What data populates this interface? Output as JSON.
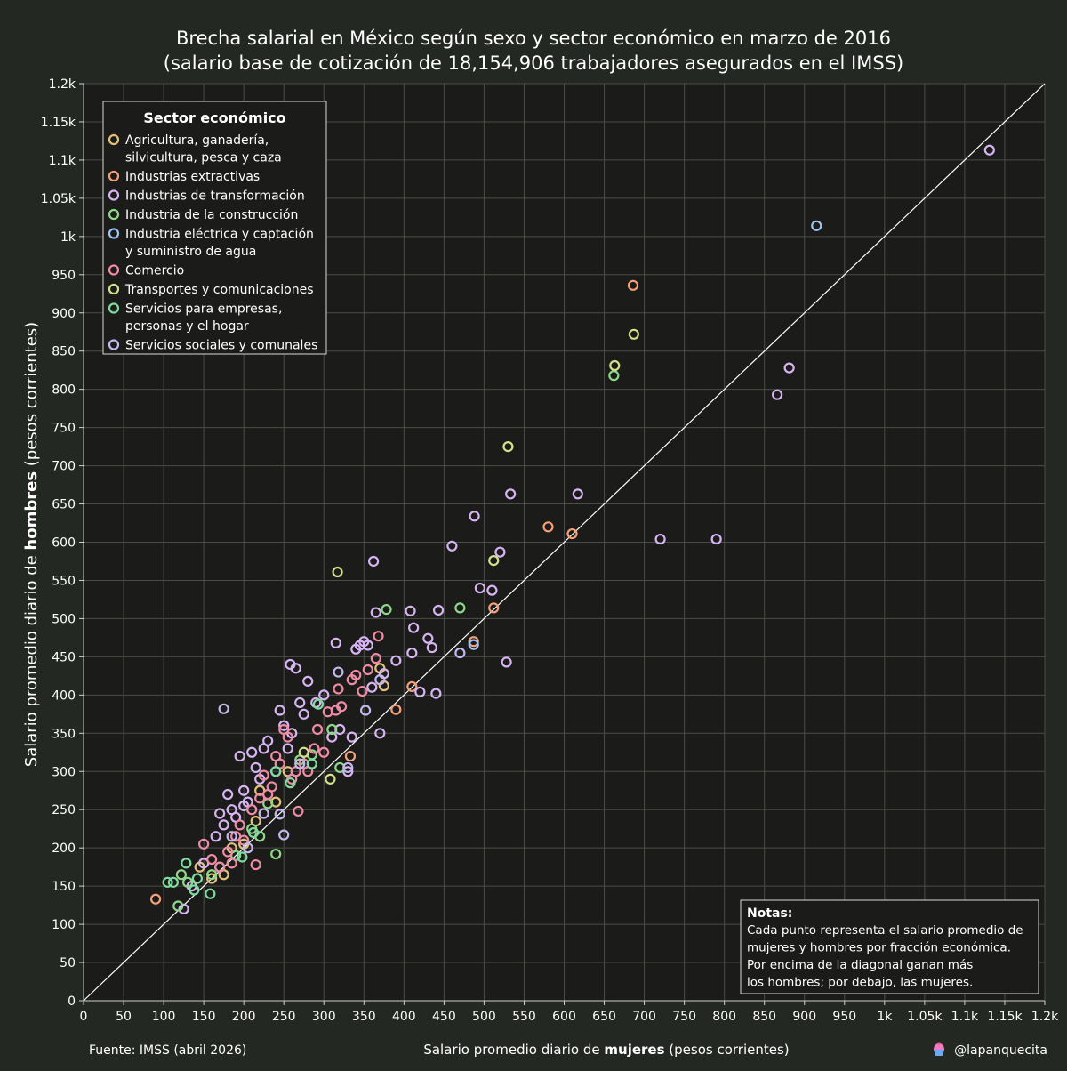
{
  "chart_data": {
    "type": "scatter",
    "title": "Brecha salarial en México según sexo y sector económico en marzo de 2016",
    "subtitle": "(salario base de cotización de 18,154,906 trabajadores asegurados en el IMSS)",
    "xlabel_prefix": "Salario promedio diario de ",
    "xlabel_bold": "mujeres",
    "xlabel_suffix": " (pesos corrientes)",
    "ylabel_prefix": "Salario promedio diario de ",
    "ylabel_bold": "hombres",
    "ylabel_suffix": " (pesos corrientes)",
    "xlim": [
      0,
      1200
    ],
    "ylim": [
      0,
      1200
    ],
    "xticks": [
      0,
      50,
      100,
      150,
      200,
      250,
      300,
      350,
      400,
      450,
      500,
      550,
      600,
      650,
      700,
      750,
      800,
      850,
      900,
      950,
      1000,
      1050,
      1100,
      1150,
      1200
    ],
    "xtick_labels": [
      "0",
      "50",
      "100",
      "150",
      "200",
      "250",
      "300",
      "350",
      "400",
      "450",
      "500",
      "550",
      "600",
      "650",
      "700",
      "750",
      "800",
      "850",
      "900",
      "950",
      "1k",
      "1.05k",
      "1.1k",
      "1.15k",
      "1.2k"
    ],
    "yticks": [
      0,
      50,
      100,
      150,
      200,
      250,
      300,
      350,
      400,
      450,
      500,
      550,
      600,
      650,
      700,
      750,
      800,
      850,
      900,
      950,
      1000,
      1050,
      1100,
      1150,
      1200
    ],
    "ytick_labels": [
      "0",
      "50",
      "100",
      "150",
      "200",
      "250",
      "300",
      "350",
      "400",
      "450",
      "500",
      "550",
      "600",
      "650",
      "700",
      "750",
      "800",
      "850",
      "900",
      "950",
      "1k",
      "1.05k",
      "1.1k",
      "1.15k",
      "1.2k"
    ],
    "grid": true,
    "reference_line": "diagonal y = x",
    "legend": {
      "title": "Sector económico",
      "placement": "top-left"
    },
    "series": [
      {
        "name": "Agricultura, ganadería, silvicultura, pesca y caza",
        "legend_lines": [
          "Agricultura, ganadería,",
          "silvicultura, pesca y caza"
        ],
        "color": "#e5c07b",
        "points": [
          [
            145,
            175
          ],
          [
            160,
            160
          ],
          [
            175,
            165
          ],
          [
            185,
            200
          ],
          [
            200,
            205
          ],
          [
            215,
            235
          ],
          [
            220,
            275
          ],
          [
            240,
            260
          ],
          [
            255,
            300
          ],
          [
            370,
            435
          ],
          [
            375,
            412
          ]
        ]
      },
      {
        "name": "Industrias extractivas",
        "legend_lines": [
          "Industrias extractivas"
        ],
        "color": "#f4a07a",
        "points": [
          [
            90,
            133
          ],
          [
            333,
            320
          ],
          [
            390,
            381
          ],
          [
            410,
            411
          ],
          [
            487,
            470
          ],
          [
            512,
            514
          ],
          [
            580,
            620
          ],
          [
            610,
            611
          ],
          [
            686,
            936
          ]
        ]
      },
      {
        "name": "Industrias de transformación",
        "legend_lines": [
          "Industrias de transformación"
        ],
        "color": "#d7b4f3",
        "points": [
          [
            125,
            120
          ],
          [
            135,
            150
          ],
          [
            150,
            180
          ],
          [
            165,
            215
          ],
          [
            170,
            245
          ],
          [
            175,
            230
          ],
          [
            180,
            270
          ],
          [
            185,
            250
          ],
          [
            190,
            240
          ],
          [
            195,
            320
          ],
          [
            200,
            275
          ],
          [
            200,
            255
          ],
          [
            205,
            260
          ],
          [
            210,
            325
          ],
          [
            215,
            305
          ],
          [
            220,
            290
          ],
          [
            225,
            330
          ],
          [
            230,
            340
          ],
          [
            240,
            300
          ],
          [
            245,
            380
          ],
          [
            250,
            360
          ],
          [
            255,
            330
          ],
          [
            258,
            440
          ],
          [
            260,
            350
          ],
          [
            265,
            435
          ],
          [
            270,
            390
          ],
          [
            275,
            375
          ],
          [
            280,
            418
          ],
          [
            290,
            390
          ],
          [
            300,
            400
          ],
          [
            310,
            345
          ],
          [
            315,
            468
          ],
          [
            320,
            355
          ],
          [
            330,
            300
          ],
          [
            335,
            345
          ],
          [
            340,
            460
          ],
          [
            345,
            465
          ],
          [
            350,
            470
          ],
          [
            355,
            465
          ],
          [
            360,
            410
          ],
          [
            362,
            575
          ],
          [
            365,
            508
          ],
          [
            370,
            350
          ],
          [
            375,
            428
          ],
          [
            390,
            445
          ],
          [
            408,
            510
          ],
          [
            410,
            455
          ],
          [
            412,
            488
          ],
          [
            420,
            404
          ],
          [
            430,
            474
          ],
          [
            435,
            462
          ],
          [
            440,
            402
          ],
          [
            443,
            511
          ],
          [
            460,
            595
          ],
          [
            488,
            634
          ],
          [
            495,
            540
          ],
          [
            510,
            537
          ],
          [
            520,
            587
          ],
          [
            528,
            443
          ],
          [
            533,
            663
          ],
          [
            617,
            663
          ],
          [
            720,
            604
          ],
          [
            790,
            604
          ],
          [
            866,
            793
          ],
          [
            881,
            828
          ],
          [
            1131,
            1113
          ]
        ]
      },
      {
        "name": "Industria de la construcción",
        "legend_lines": [
          "Industria de la construcción"
        ],
        "color": "#8fd88a",
        "points": [
          [
            118,
            124
          ],
          [
            122,
            165
          ],
          [
            130,
            155
          ],
          [
            160,
            165
          ],
          [
            170,
            175
          ],
          [
            190,
            190
          ],
          [
            210,
            225
          ],
          [
            220,
            215
          ],
          [
            230,
            258
          ],
          [
            240,
            192
          ],
          [
            270,
            315
          ],
          [
            285,
            322
          ],
          [
            310,
            355
          ],
          [
            320,
            305
          ],
          [
            378,
            512
          ],
          [
            470,
            514
          ],
          [
            662,
            818
          ]
        ]
      },
      {
        "name": "Industria eléctrica y captación y suministro de agua",
        "legend_lines": [
          "Industria eléctrica y captación",
          "y suministro de agua"
        ],
        "color": "#9ec4f5",
        "points": [
          [
            487,
            466
          ],
          [
            915,
            1014
          ]
        ]
      },
      {
        "name": "Comercio",
        "legend_lines": [
          "Comercio"
        ],
        "color": "#f08aa6",
        "points": [
          [
            150,
            205
          ],
          [
            160,
            185
          ],
          [
            170,
            175
          ],
          [
            180,
            195
          ],
          [
            185,
            180
          ],
          [
            190,
            215
          ],
          [
            195,
            230
          ],
          [
            200,
            210
          ],
          [
            210,
            250
          ],
          [
            215,
            178
          ],
          [
            220,
            265
          ],
          [
            225,
            295
          ],
          [
            230,
            270
          ],
          [
            235,
            280
          ],
          [
            240,
            320
          ],
          [
            245,
            310
          ],
          [
            250,
            355
          ],
          [
            255,
            345
          ],
          [
            260,
            290
          ],
          [
            265,
            300
          ],
          [
            268,
            248
          ],
          [
            275,
            310
          ],
          [
            280,
            300
          ],
          [
            288,
            330
          ],
          [
            292,
            355
          ],
          [
            300,
            325
          ],
          [
            305,
            378
          ],
          [
            315,
            380
          ],
          [
            318,
            408
          ],
          [
            322,
            385
          ],
          [
            335,
            420
          ],
          [
            340,
            426
          ],
          [
            348,
            405
          ],
          [
            355,
            433
          ],
          [
            365,
            448
          ],
          [
            368,
            477
          ]
        ]
      },
      {
        "name": "Transportes y comunicaciones",
        "legend_lines": [
          "Transportes y comunicaciones"
        ],
        "color": "#d4e08a",
        "points": [
          [
            275,
            325
          ],
          [
            308,
            290
          ],
          [
            317,
            561
          ],
          [
            512,
            576
          ],
          [
            530,
            725
          ],
          [
            663,
            831
          ],
          [
            687,
            872
          ]
        ]
      },
      {
        "name": "Servicios para empresas, personas y el hogar",
        "legend_lines": [
          "Servicios para empresas,",
          "personas y el hogar"
        ],
        "color": "#7fdca0",
        "points": [
          [
            105,
            155
          ],
          [
            112,
            155
          ],
          [
            128,
            180
          ],
          [
            138,
            145
          ],
          [
            142,
            160
          ],
          [
            158,
            140
          ],
          [
            198,
            188
          ],
          [
            212,
            220
          ],
          [
            240,
            300
          ],
          [
            258,
            285
          ],
          [
            285,
            310
          ],
          [
            293,
            388
          ]
        ]
      },
      {
        "name": "Servicios sociales y comunales",
        "legend_lines": [
          "Servicios sociales y comunales"
        ],
        "color": "#c4b8f0",
        "points": [
          [
            175,
            382
          ],
          [
            185,
            215
          ],
          [
            205,
            200
          ],
          [
            225,
            245
          ],
          [
            245,
            244
          ],
          [
            250,
            217
          ],
          [
            270,
            310
          ],
          [
            318,
            430
          ],
          [
            330,
            305
          ],
          [
            352,
            380
          ],
          [
            370,
            420
          ],
          [
            470,
            455
          ]
        ]
      }
    ]
  },
  "notes": {
    "title": "Notas:",
    "lines": [
      "Cada punto representa el salario promedio de",
      "mujeres y hombres por fracción económica.",
      "Por encima de la diagonal ganan más",
      "los hombres; por debajo, las mujeres."
    ]
  },
  "footer": {
    "source": "Fuente: IMSS (abril 2026)",
    "credit": "@lapanquecita",
    "credit_icon": "cupcake-icon"
  },
  "colors": {
    "background": "#242822",
    "plot_background": "#1b1c19",
    "grid": "#4a4d47",
    "text": "#ffffff",
    "diagonal": "#ffffff"
  }
}
